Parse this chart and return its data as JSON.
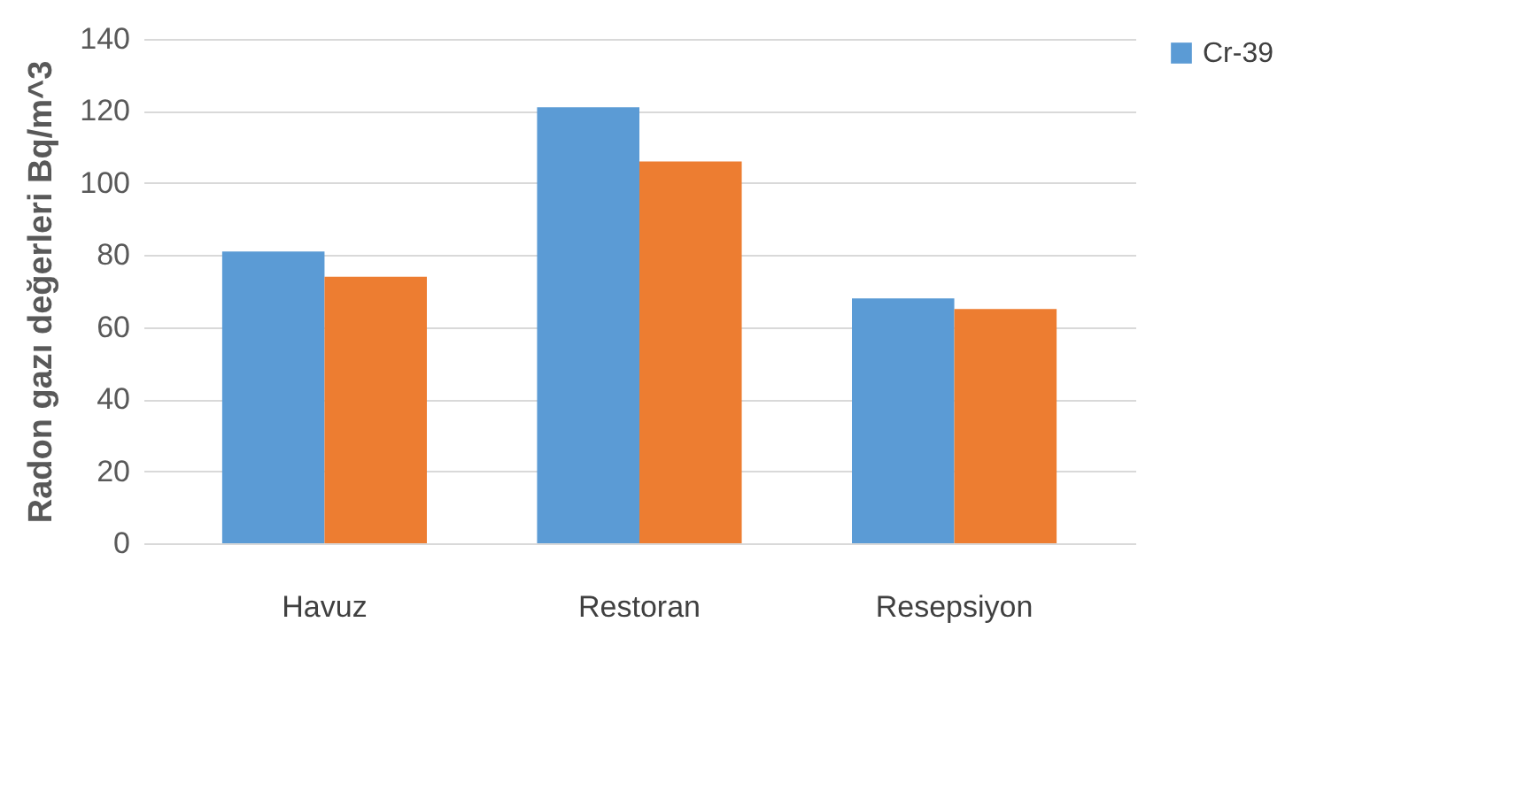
{
  "chart_data": {
    "type": "bar",
    "ylabel": "Radon gazı değerleri Bq/m^3",
    "categories": [
      "Havuz",
      "Restoran",
      "Resepsiyon"
    ],
    "series": [
      {
        "name": "Cr-39",
        "color": "#5b9bd5",
        "values": [
          81,
          121,
          68
        ]
      },
      {
        "color": "#ed7d31",
        "values": [
          74,
          106,
          65
        ]
      }
    ],
    "ylim": [
      0,
      140
    ],
    "yticks": [
      0,
      20,
      40,
      60,
      80,
      100,
      120,
      140
    ],
    "grid": "y",
    "legend": "right"
  }
}
